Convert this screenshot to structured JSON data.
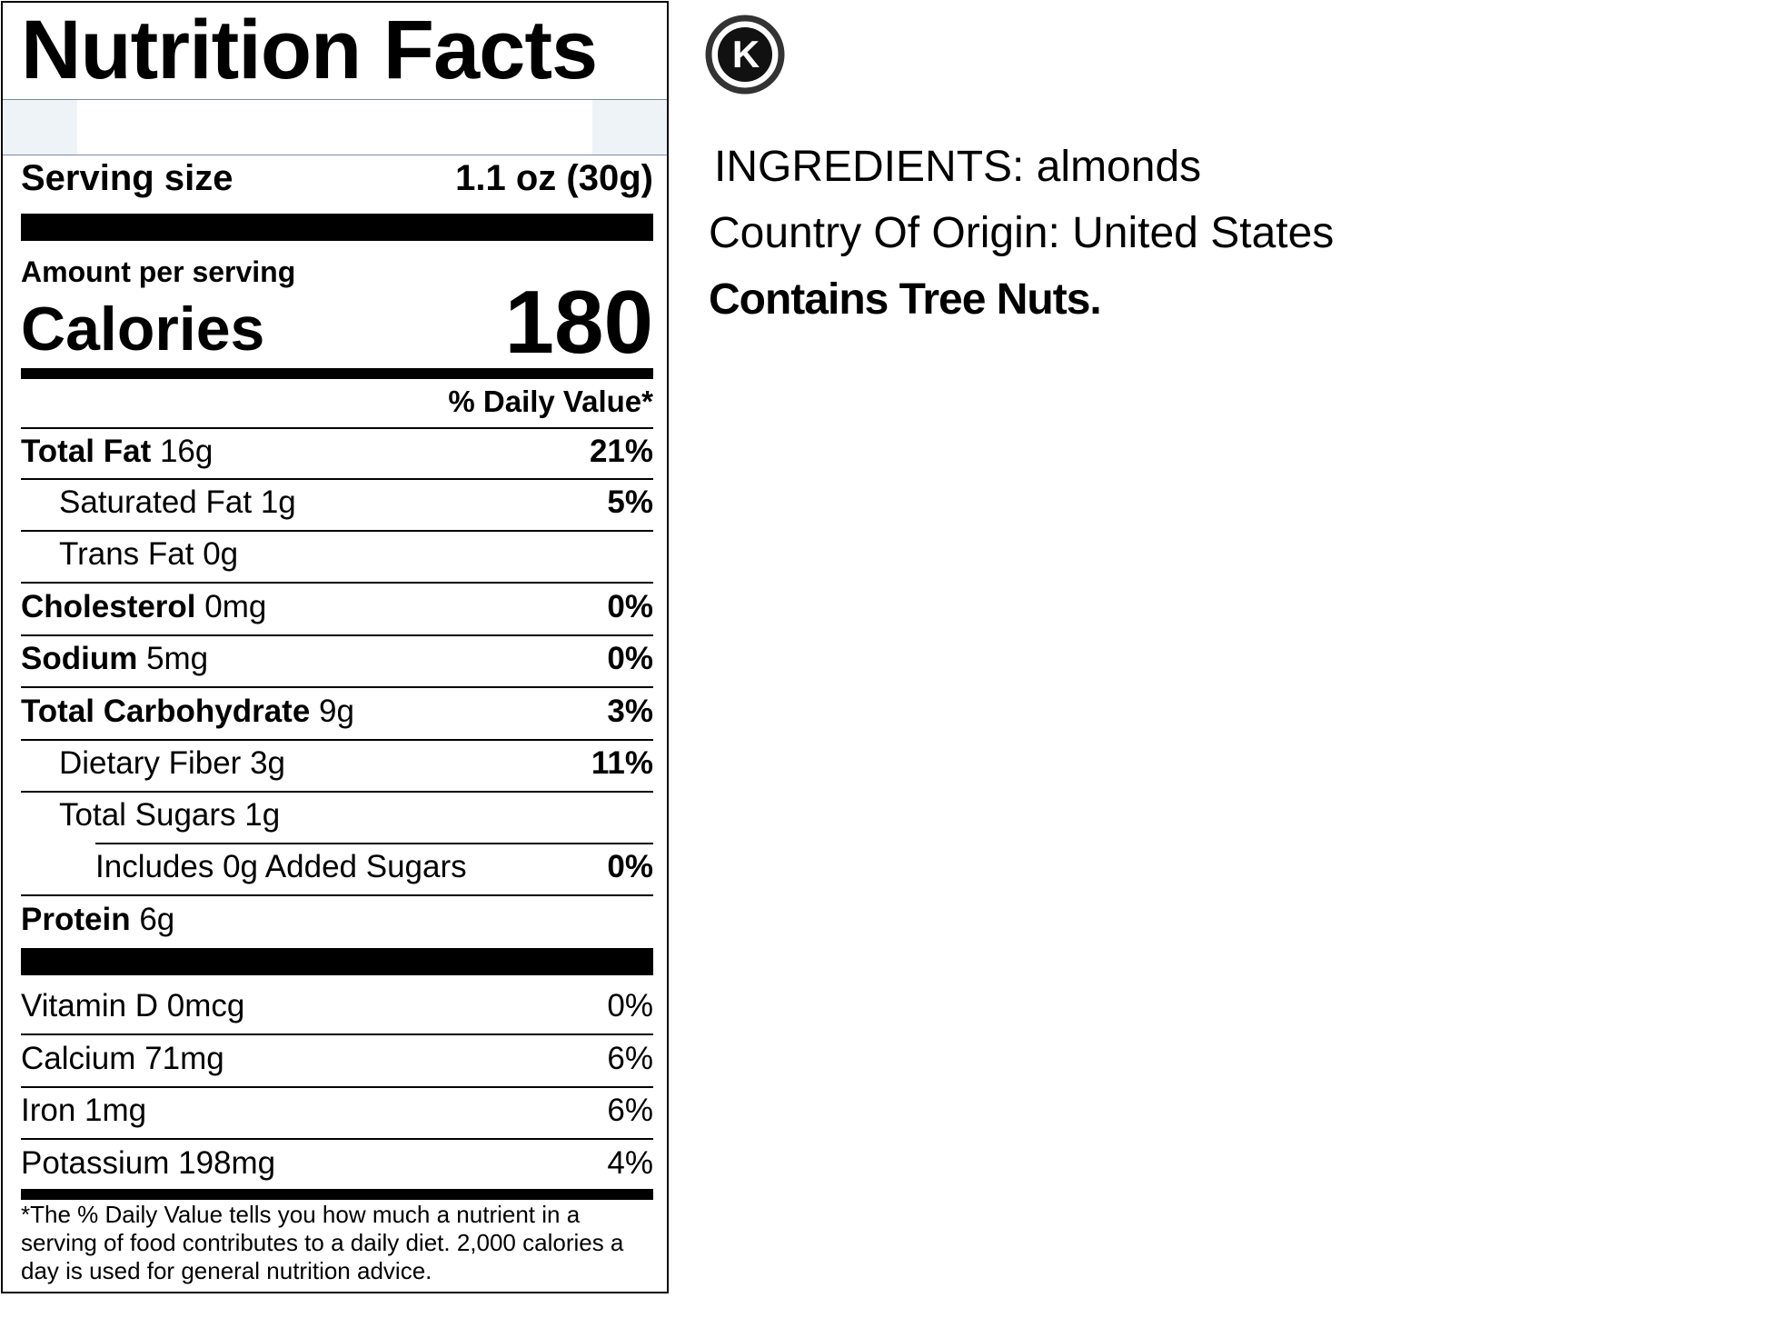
{
  "label": {
    "title": "Nutrition Facts",
    "serving_size_label": "Serving size",
    "serving_size_value": "1.1 oz (30g)",
    "amount_per_serving": "Amount per serving",
    "calories_label": "Calories",
    "calories_value": "180",
    "daily_value_header": "% Daily Value*",
    "nutrients": [
      {
        "name": "Total Fat",
        "amount": "16g",
        "dv": "21%"
      },
      {
        "name": "Saturated Fat",
        "amount": "1g",
        "dv": "5%"
      },
      {
        "name": "Trans Fat",
        "amount": "0g",
        "dv": ""
      },
      {
        "name": "Cholesterol",
        "amount": "0mg",
        "dv": "0%"
      },
      {
        "name": "Sodium",
        "amount": "5mg",
        "dv": "0%"
      },
      {
        "name": "Total Carbohydrate",
        "amount": "9g",
        "dv": "3%"
      },
      {
        "name": "Dietary Fiber",
        "amount": "3g",
        "dv": "11%"
      },
      {
        "name": "Total Sugars",
        "amount": "1g",
        "dv": ""
      },
      {
        "name": "Includes 0g Added Sugars",
        "amount": "",
        "dv": "0%"
      },
      {
        "name": "Protein",
        "amount": "6g",
        "dv": ""
      }
    ],
    "vitamins": [
      {
        "name": "Vitamin D 0mcg",
        "dv": "0%"
      },
      {
        "name": "Calcium 71mg",
        "dv": "6%"
      },
      {
        "name": "Iron 1mg",
        "dv": "6%"
      },
      {
        "name": "Potassium 198mg",
        "dv": "4%"
      }
    ],
    "footnote": "*The % Daily Value tells you how much a nutrient in a serving of food contributes to a daily diet. 2,000 calories a day is used for general nutrition advice."
  },
  "side": {
    "kosher_symbol": "K",
    "kosher_icon": "kosher-circle-k-icon",
    "ingredients": "INGREDIENTS: almonds",
    "origin": "Country Of Origin: United States",
    "allergen": "Contains Tree Nuts."
  },
  "colors": {
    "text": "#000000",
    "band_border": "#7a8aa6",
    "band_fill": "#eef3f8"
  }
}
